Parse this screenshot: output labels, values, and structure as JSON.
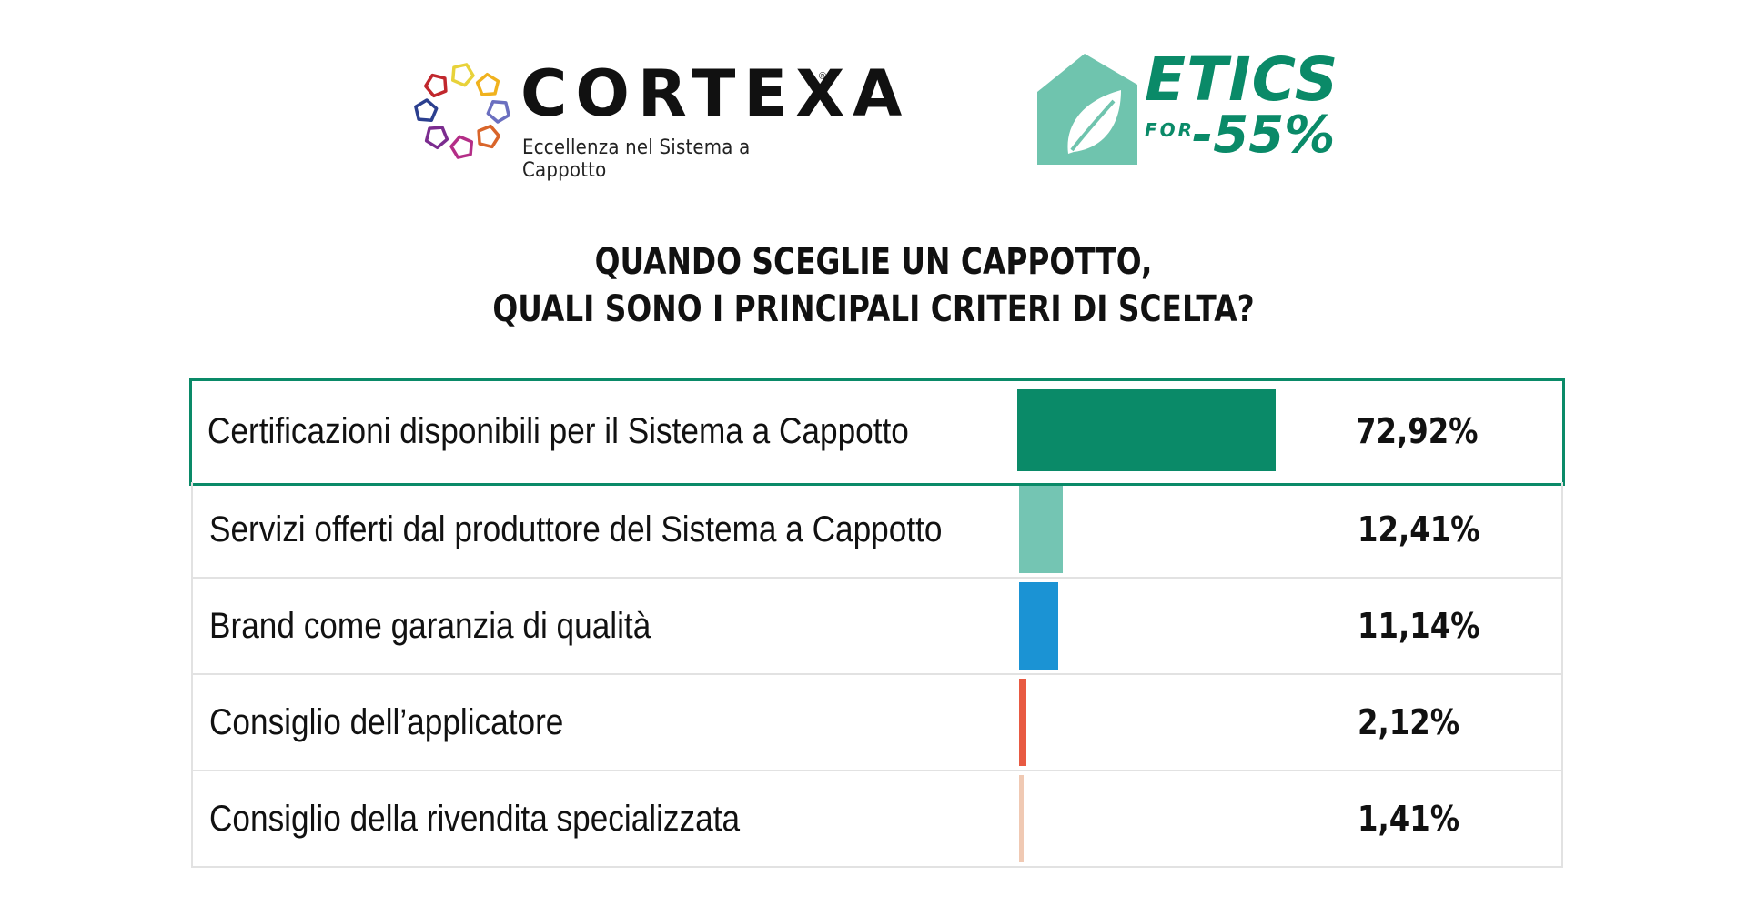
{
  "logos": {
    "cortexa": {
      "name": "CORTEXA",
      "registered": "®",
      "tagline": "Eccellenza nel Sistema a Cappotto",
      "ring_colors": [
        "#e8d23a",
        "#f0b21e",
        "#6b6fc0",
        "#d9652a",
        "#b42e87",
        "#7b2c8f",
        "#2b3f8f",
        "#c1272d"
      ]
    },
    "etics": {
      "word": "ETICS",
      "for": "FOR",
      "number": "-55%",
      "color": "#0a8a68",
      "house_color": "#6fc4ae"
    }
  },
  "chart_data": {
    "type": "bar",
    "title": [
      "QUANDO SCEGLIE UN CAPPOTTO,",
      "QUALI SONO I PRINCIPALI CRITERI DI SCELTA?"
    ],
    "categories": [
      "Certificazioni disponibili per il Sistema a Cappotto",
      "Servizi offerti dal produttore del Sistema a Cappotto",
      "Brand come garanzia di qualità",
      "Consiglio dell’applicatore",
      "Consiglio della rivendita specializzata"
    ],
    "values": [
      72.92,
      12.41,
      11.14,
      2.12,
      1.41
    ],
    "value_labels": [
      "72,92%",
      "12,41%",
      "11,14%",
      "2,12%",
      "1,41%"
    ],
    "colors": [
      "#0a8a68",
      "#74c5b3",
      "#1b93d4",
      "#e85a42",
      "#f0c9b3"
    ],
    "highlighted": 0,
    "orientation": "horizontal"
  }
}
